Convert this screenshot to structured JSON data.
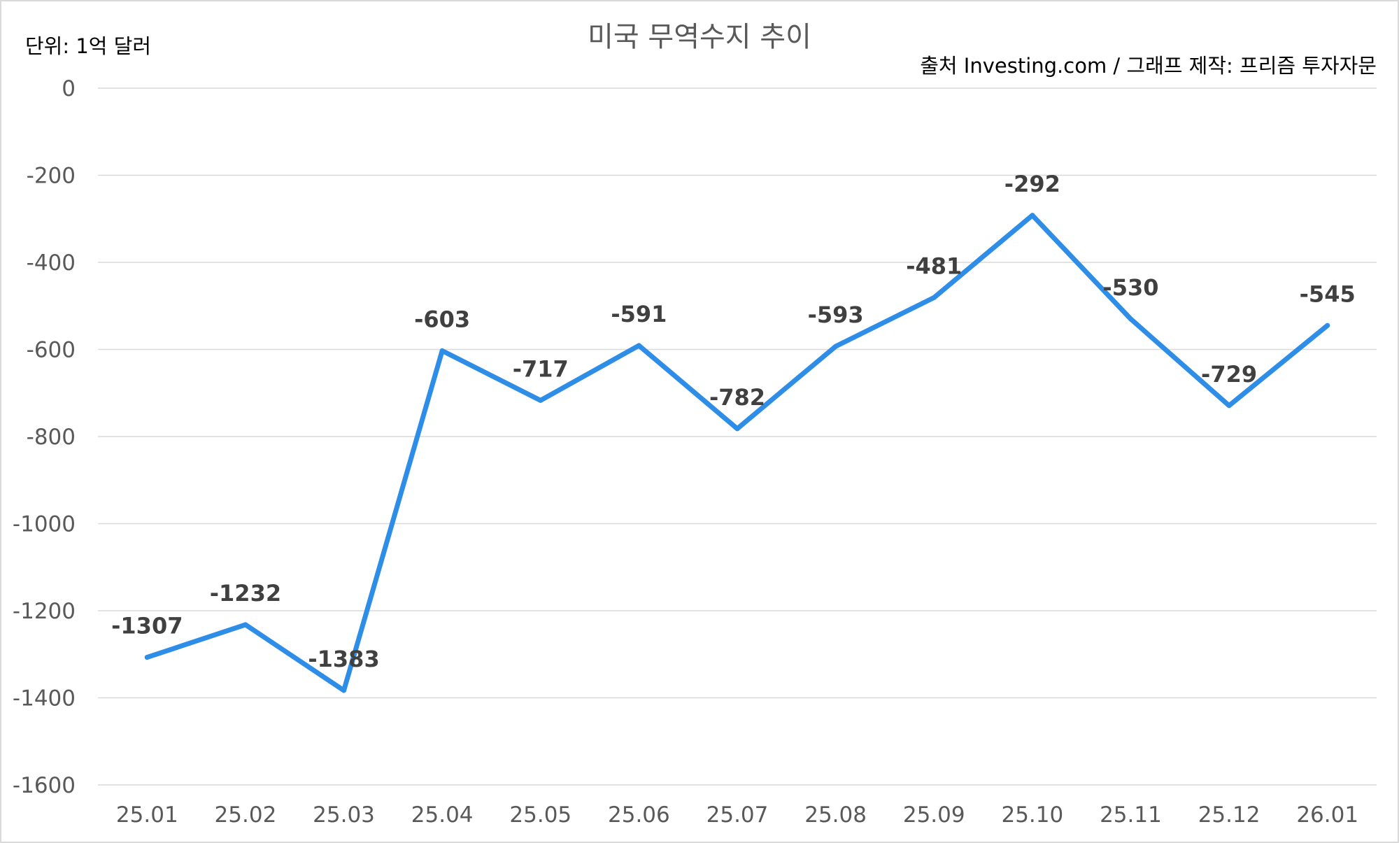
{
  "chart_data": {
    "type": "line",
    "title": "미국 무역수지 추이",
    "unit_label": "단위: 1억 달러",
    "source_note": "출처 Investing.com / 그래프 제작: 프리즘 투자자문",
    "categories": [
      "25.01",
      "25.02",
      "25.03",
      "25.04",
      "25.05",
      "25.06",
      "25.07",
      "25.08",
      "25.09",
      "25.10",
      "25.11",
      "25.12",
      "26.01"
    ],
    "series": [
      {
        "values": [
          -1307,
          -1232,
          -1383,
          -603,
          -717,
          -591,
          -782,
          -593,
          -481,
          -292,
          -530,
          -729,
          -545
        ],
        "color": "#2e8de6"
      }
    ],
    "ylim": [
      -1600,
      0
    ],
    "yticks": [
      "0",
      "-200",
      "-400",
      "-600",
      "-800",
      "-1000",
      "-1200",
      "-1400",
      "-1600"
    ],
    "ytick_values": [
      0,
      -200,
      -400,
      -600,
      -800,
      -1000,
      -1200,
      -1400,
      -1600
    ],
    "grid": true,
    "legend": "none"
  }
}
